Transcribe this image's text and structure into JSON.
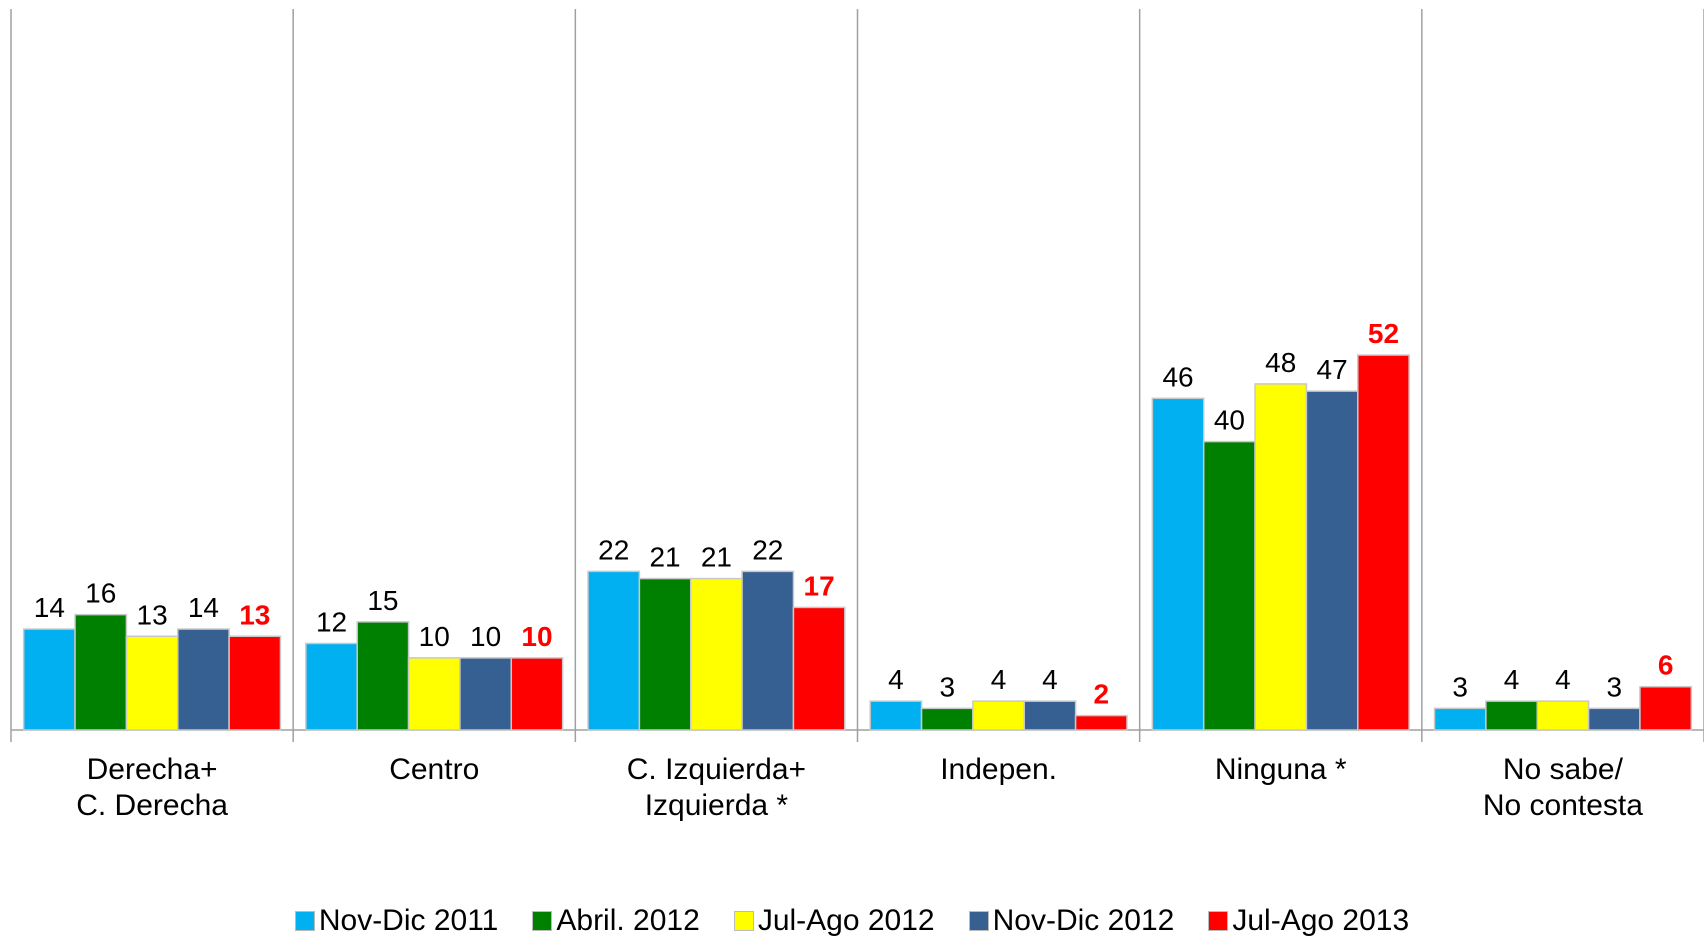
{
  "chart_data": {
    "type": "bar",
    "categories": [
      "Derecha+\nC. Derecha",
      "Centro",
      "C. Izquierda+\nIzquierda *",
      "Indepen.",
      "Ninguna *",
      "No sabe/\nNo contesta"
    ],
    "series": [
      {
        "name": "Nov-Dic 2011",
        "color": "#00b0f0",
        "values": [
          14,
          12,
          22,
          4,
          46,
          3
        ]
      },
      {
        "name": "Abril. 2012",
        "color": "#008000",
        "values": [
          16,
          15,
          21,
          3,
          40,
          4
        ]
      },
      {
        "name": "Jul-Ago 2012",
        "color": "#ffff00",
        "values": [
          13,
          10,
          21,
          4,
          48,
          4
        ]
      },
      {
        "name": "Nov-Dic 2012",
        "color": "#376092",
        "values": [
          14,
          10,
          22,
          4,
          47,
          3
        ]
      },
      {
        "name": "Jul-Ago 2013",
        "color": "#ff0000",
        "values": [
          13,
          10,
          17,
          2,
          52,
          6
        ],
        "bold_labels": true
      }
    ],
    "ylim": [
      0,
      100
    ],
    "legend": "bottom"
  }
}
